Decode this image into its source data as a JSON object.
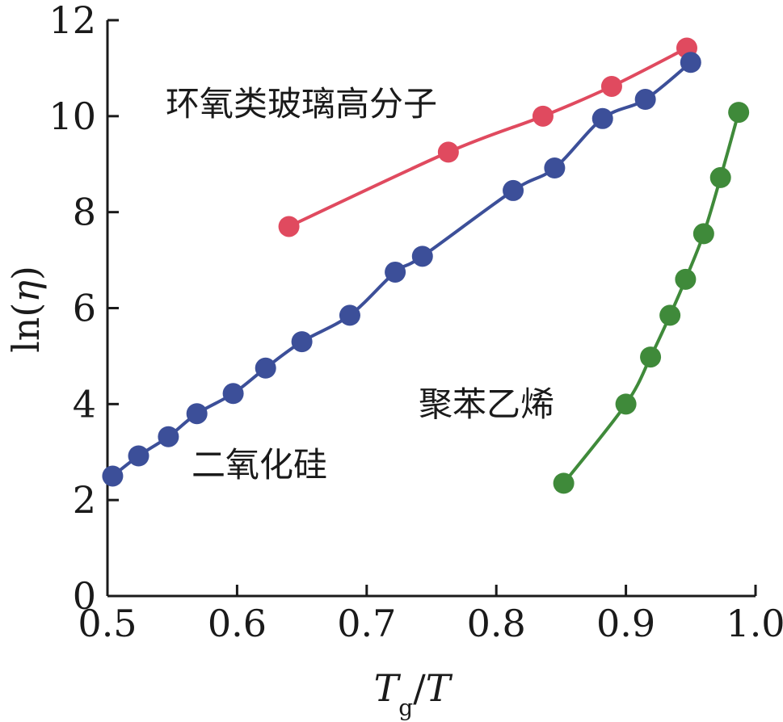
{
  "chart_data": {
    "type": "line",
    "title": "",
    "xlabel": {
      "main": "T",
      "sub": "g",
      "sep": "/",
      "den": "T"
    },
    "ylabel": {
      "pre": "ln(",
      "var": "η",
      "post": ")"
    },
    "xlim": [
      0.5,
      1.0
    ],
    "ylim": [
      0,
      12
    ],
    "xticks": [
      "0.5",
      "0.6",
      "0.7",
      "0.8",
      "0.9",
      "1.0"
    ],
    "yticks": [
      "0",
      "2",
      "4",
      "6",
      "8",
      "10",
      "12"
    ],
    "grid": false,
    "series": [
      {
        "name": "环氧类玻璃高分子",
        "color": "#e04a5f",
        "x": [
          0.64,
          0.763,
          0.836,
          0.889,
          0.947
        ],
        "y": [
          7.7,
          9.25,
          10.0,
          10.62,
          11.42
        ]
      },
      {
        "name": "二氧化硅",
        "color": "#3c4f99",
        "x": [
          0.504,
          0.524,
          0.547,
          0.569,
          0.597,
          0.622,
          0.65,
          0.687,
          0.722,
          0.743,
          0.813,
          0.845,
          0.882,
          0.915,
          0.95
        ],
        "y": [
          2.5,
          2.92,
          3.32,
          3.8,
          4.22,
          4.75,
          5.3,
          5.85,
          6.75,
          7.08,
          8.45,
          8.92,
          9.95,
          10.35,
          11.12
        ]
      },
      {
        "name": "聚苯乙烯",
        "color": "#3f8a3a",
        "x": [
          0.852,
          0.9,
          0.919,
          0.934,
          0.946,
          0.96,
          0.973,
          0.987
        ],
        "y": [
          2.35,
          4.0,
          4.98,
          5.85,
          6.6,
          7.55,
          8.72,
          10.08
        ]
      }
    ]
  }
}
